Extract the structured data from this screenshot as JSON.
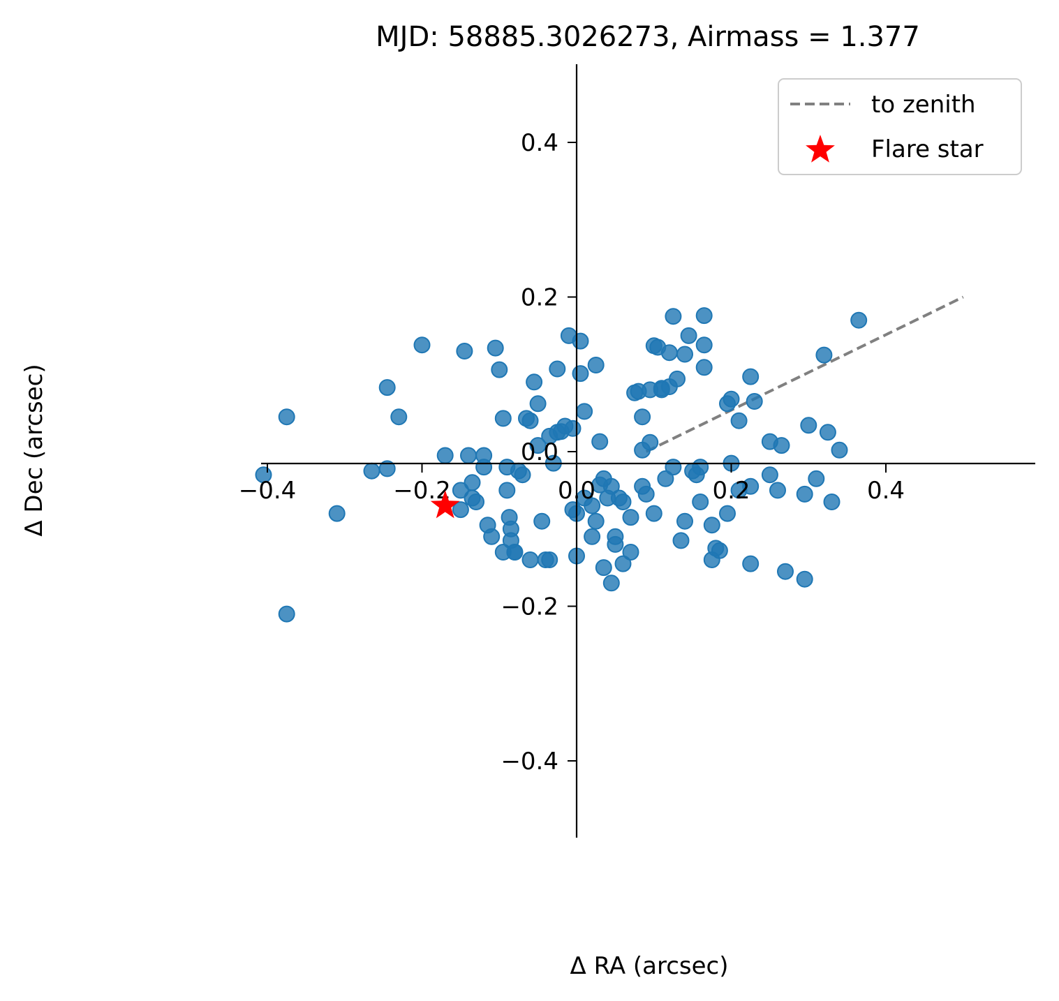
{
  "chart_data": {
    "type": "scatter",
    "title": "MJD: 58885.3026273, Airmass = 1.377",
    "xlabel": "Δ RA (arcsec)",
    "ylabel": "Δ Dec (arcsec)",
    "xlim": [
      -0.5,
      0.5
    ],
    "ylim": [
      -0.5,
      0.5
    ],
    "grid": false,
    "legend_position": "top-right",
    "xticks": [
      {
        "value": -0.4,
        "label": "−0.4"
      },
      {
        "value": -0.2,
        "label": "−0.2"
      },
      {
        "value": 0.0,
        "label": "0.0"
      },
      {
        "value": 0.2,
        "label": "0.2"
      },
      {
        "value": 0.4,
        "label": "0.4"
      }
    ],
    "yticks": [
      {
        "value": 0.4,
        "label": "0.4"
      },
      {
        "value": 0.2,
        "label": "0.2"
      },
      {
        "value": 0.0,
        "label": "0.0"
      },
      {
        "value": -0.2,
        "label": "−0.2"
      },
      {
        "value": -0.4,
        "label": "−0.4"
      }
    ],
    "zenith_line": {
      "label": "to zenith",
      "color": "#808080",
      "start": [
        0.09,
        0.0
      ],
      "end": [
        0.5,
        0.2
      ]
    },
    "flare_star": {
      "label": "Flare star",
      "color": "#ff0000",
      "x": -0.17,
      "y": -0.07
    },
    "points_color": "#1f77b4",
    "points": [
      [
        -0.375,
        0.045
      ],
      [
        -0.405,
        -0.03
      ],
      [
        -0.375,
        -0.21
      ],
      [
        -0.31,
        -0.08
      ],
      [
        -0.265,
        -0.025
      ],
      [
        -0.245,
        -0.022
      ],
      [
        -0.245,
        0.083
      ],
      [
        -0.23,
        0.045
      ],
      [
        -0.2,
        0.138
      ],
      [
        -0.17,
        -0.005
      ],
      [
        -0.15,
        -0.05
      ],
      [
        -0.15,
        -0.075
      ],
      [
        -0.145,
        0.13
      ],
      [
        -0.14,
        -0.005
      ],
      [
        -0.135,
        -0.04
      ],
      [
        -0.135,
        -0.06
      ],
      [
        -0.13,
        -0.065
      ],
      [
        -0.12,
        -0.005
      ],
      [
        -0.12,
        -0.02
      ],
      [
        -0.115,
        -0.095
      ],
      [
        -0.11,
        -0.11
      ],
      [
        -0.105,
        0.134
      ],
      [
        -0.1,
        0.106
      ],
      [
        -0.095,
        0.043
      ],
      [
        -0.095,
        -0.13
      ],
      [
        -0.09,
        -0.02
      ],
      [
        -0.09,
        -0.05
      ],
      [
        -0.087,
        -0.085
      ],
      [
        -0.085,
        -0.1
      ],
      [
        -0.085,
        -0.115
      ],
      [
        -0.08,
        -0.13
      ],
      [
        -0.08,
        -0.13
      ],
      [
        -0.075,
        -0.025
      ],
      [
        -0.07,
        -0.03
      ],
      [
        -0.065,
        0.043
      ],
      [
        -0.06,
        0.04
      ],
      [
        -0.06,
        -0.14
      ],
      [
        -0.055,
        0.09
      ],
      [
        -0.05,
        0.062
      ],
      [
        -0.05,
        0.008
      ],
      [
        -0.045,
        -0.09
      ],
      [
        -0.04,
        -0.14
      ],
      [
        -0.035,
        -0.14
      ],
      [
        -0.035,
        0.02
      ],
      [
        -0.03,
        -0.015
      ],
      [
        -0.025,
        0.107
      ],
      [
        -0.025,
        0.025
      ],
      [
        -0.02,
        0.026
      ],
      [
        -0.015,
        0.033
      ],
      [
        -0.01,
        0.15
      ],
      [
        -0.005,
        0.03
      ],
      [
        -0.005,
        -0.075
      ],
      [
        0.0,
        -0.135
      ],
      [
        0.0,
        -0.08
      ],
      [
        0.005,
        0.143
      ],
      [
        0.005,
        0.101
      ],
      [
        0.01,
        0.052
      ],
      [
        0.01,
        -0.06
      ],
      [
        0.02,
        -0.11
      ],
      [
        0.02,
        -0.07
      ],
      [
        0.025,
        0.112
      ],
      [
        0.025,
        -0.09
      ],
      [
        0.03,
        0.013
      ],
      [
        0.03,
        -0.043
      ],
      [
        0.035,
        -0.15
      ],
      [
        0.035,
        -0.035
      ],
      [
        0.04,
        -0.06
      ],
      [
        0.045,
        -0.045
      ],
      [
        0.045,
        -0.17
      ],
      [
        0.05,
        -0.11
      ],
      [
        0.05,
        -0.12
      ],
      [
        0.055,
        -0.06
      ],
      [
        0.06,
        -0.065
      ],
      [
        0.06,
        -0.145
      ],
      [
        0.07,
        -0.13
      ],
      [
        0.07,
        -0.085
      ],
      [
        0.075,
        0.076
      ],
      [
        0.08,
        0.078
      ],
      [
        0.085,
        0.045
      ],
      [
        0.085,
        0.002
      ],
      [
        0.085,
        -0.045
      ],
      [
        0.09,
        -0.055
      ],
      [
        0.095,
        0.012
      ],
      [
        0.095,
        0.08
      ],
      [
        0.1,
        -0.08
      ],
      [
        0.1,
        0.137
      ],
      [
        0.105,
        0.135
      ],
      [
        0.11,
        0.082
      ],
      [
        0.11,
        0.08
      ],
      [
        0.115,
        -0.035
      ],
      [
        0.12,
        0.128
      ],
      [
        0.125,
        -0.02
      ],
      [
        0.12,
        0.084
      ],
      [
        0.125,
        0.175
      ],
      [
        0.13,
        0.094
      ],
      [
        0.135,
        -0.115
      ],
      [
        0.14,
        0.126
      ],
      [
        0.14,
        -0.09
      ],
      [
        0.145,
        0.15
      ],
      [
        0.15,
        -0.025
      ],
      [
        0.155,
        -0.03
      ],
      [
        0.16,
        -0.02
      ],
      [
        0.16,
        -0.065
      ],
      [
        0.165,
        0.109
      ],
      [
        0.165,
        0.138
      ],
      [
        0.165,
        0.176
      ],
      [
        0.175,
        -0.14
      ],
      [
        0.175,
        -0.095
      ],
      [
        0.18,
        -0.125
      ],
      [
        0.185,
        -0.128
      ],
      [
        0.195,
        -0.08
      ],
      [
        0.195,
        0.062
      ],
      [
        0.2,
        0.068
      ],
      [
        0.2,
        -0.015
      ],
      [
        0.21,
        0.04
      ],
      [
        0.21,
        -0.05
      ],
      [
        0.225,
        -0.145
      ],
      [
        0.225,
        0.097
      ],
      [
        0.225,
        -0.045
      ],
      [
        0.23,
        0.065
      ],
      [
        0.25,
        0.013
      ],
      [
        0.25,
        -0.03
      ],
      [
        0.26,
        -0.05
      ],
      [
        0.265,
        0.008
      ],
      [
        0.27,
        -0.155
      ],
      [
        0.295,
        -0.055
      ],
      [
        0.295,
        -0.165
      ],
      [
        0.3,
        0.034
      ],
      [
        0.31,
        -0.035
      ],
      [
        0.32,
        0.125
      ],
      [
        0.325,
        0.025
      ],
      [
        0.33,
        -0.065
      ],
      [
        0.34,
        0.002
      ],
      [
        0.365,
        0.17
      ]
    ]
  }
}
